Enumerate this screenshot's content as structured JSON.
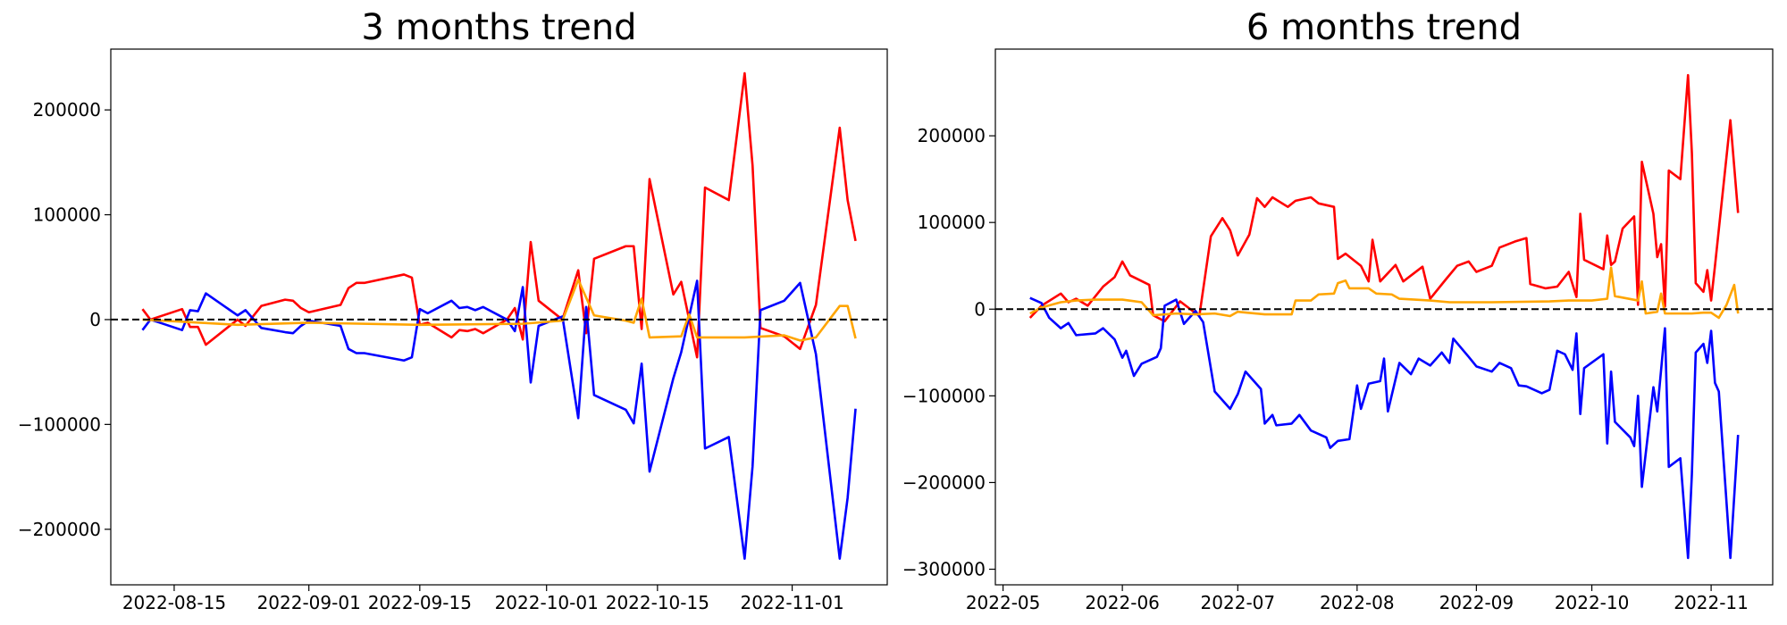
{
  "chart_data": [
    {
      "type": "line",
      "title": "3 months trend",
      "xlim": [
        "2022-08-07",
        "2022-11-13"
      ],
      "xticks": [
        "2022-08-15",
        "2022-09-01",
        "2022-09-15",
        "2022-10-01",
        "2022-10-15",
        "2022-11-01"
      ],
      "ylim": [
        -253000,
        258000
      ],
      "yticks": [
        {
          "value": -200000,
          "label": "−200000"
        },
        {
          "value": -100000,
          "label": "−100000"
        },
        0,
        100000,
        200000
      ],
      "hline": 0,
      "series": [
        {
          "color": "#ff0000",
          "x": [
            "2022-08-11",
            "2022-08-12",
            "2022-08-16",
            "2022-08-17",
            "2022-08-18",
            "2022-08-19",
            "2022-08-23",
            "2022-08-24",
            "2022-08-26",
            "2022-08-29",
            "2022-08-30",
            "2022-08-31",
            "2022-09-01",
            "2022-09-05",
            "2022-09-06",
            "2022-09-07",
            "2022-09-08",
            "2022-09-13",
            "2022-09-14",
            "2022-09-15",
            "2022-09-16",
            "2022-09-19",
            "2022-09-20",
            "2022-09-21",
            "2022-09-22",
            "2022-09-23",
            "2022-09-26",
            "2022-09-27",
            "2022-09-28",
            "2022-09-29",
            "2022-09-30",
            "2022-10-03",
            "2022-10-05",
            "2022-10-06",
            "2022-10-07",
            "2022-10-11",
            "2022-10-12",
            "2022-10-13",
            "2022-10-14",
            "2022-10-17",
            "2022-10-18",
            "2022-10-20",
            "2022-10-21",
            "2022-10-24",
            "2022-10-26",
            "2022-10-27",
            "2022-10-28",
            "2022-10-31",
            "2022-11-02",
            "2022-11-04",
            "2022-11-07",
            "2022-11-08",
            "2022-11-09"
          ],
          "values": [
            10000,
            0,
            10000,
            -7000,
            -7000,
            -24000,
            0,
            -6000,
            13000,
            19000,
            18000,
            11000,
            7000,
            14000,
            30000,
            35000,
            35000,
            43000,
            40000,
            -5000,
            -3000,
            -17000,
            -10000,
            -11000,
            -9000,
            -13000,
            0,
            11000,
            -19000,
            74000,
            18000,
            0,
            47000,
            -13000,
            58000,
            70000,
            70000,
            -9000,
            134000,
            24000,
            36000,
            -36000,
            126000,
            114000,
            235000,
            147000,
            -8000,
            -16000,
            -28000,
            14000,
            183000,
            114000,
            75000
          ]
        },
        {
          "color": "#0000ff",
          "x": [
            "2022-08-11",
            "2022-08-12",
            "2022-08-16",
            "2022-08-17",
            "2022-08-18",
            "2022-08-19",
            "2022-08-23",
            "2022-08-24",
            "2022-08-26",
            "2022-08-29",
            "2022-08-30",
            "2022-08-31",
            "2022-09-01",
            "2022-09-05",
            "2022-09-06",
            "2022-09-07",
            "2022-09-08",
            "2022-09-13",
            "2022-09-14",
            "2022-09-15",
            "2022-09-16",
            "2022-09-19",
            "2022-09-20",
            "2022-09-21",
            "2022-09-22",
            "2022-09-23",
            "2022-09-26",
            "2022-09-27",
            "2022-09-28",
            "2022-09-29",
            "2022-09-30",
            "2022-10-03",
            "2022-10-05",
            "2022-10-06",
            "2022-10-07",
            "2022-10-11",
            "2022-10-12",
            "2022-10-13",
            "2022-10-14",
            "2022-10-17",
            "2022-10-18",
            "2022-10-20",
            "2022-10-21",
            "2022-10-24",
            "2022-10-26",
            "2022-10-27",
            "2022-10-28",
            "2022-10-31",
            "2022-11-02",
            "2022-11-04",
            "2022-11-07",
            "2022-11-08",
            "2022-11-09"
          ],
          "values": [
            -10000,
            0,
            -10000,
            9000,
            8000,
            25000,
            4000,
            9000,
            -8000,
            -12000,
            -13000,
            -6000,
            -1000,
            -6000,
            -28000,
            -32000,
            -32000,
            -39000,
            -36000,
            10000,
            6000,
            18000,
            11000,
            12000,
            9000,
            12000,
            0,
            -11000,
            31000,
            -60000,
            -6000,
            3000,
            -94000,
            12000,
            -72000,
            -86000,
            -99000,
            -42000,
            -145000,
            -56000,
            -31000,
            37000,
            -123000,
            -112000,
            -228000,
            -140000,
            9000,
            18000,
            35000,
            -33000,
            -228000,
            -170000,
            -85000
          ]
        },
        {
          "color": "#ffa500",
          "x": [
            "2022-08-11",
            "2022-08-16",
            "2022-08-23",
            "2022-09-01",
            "2022-09-15",
            "2022-09-28",
            "2022-10-03",
            "2022-10-05",
            "2022-10-07",
            "2022-10-11",
            "2022-10-12",
            "2022-10-13",
            "2022-10-14",
            "2022-10-18",
            "2022-10-19",
            "2022-10-20",
            "2022-10-26",
            "2022-10-31",
            "2022-11-02",
            "2022-11-04",
            "2022-11-07",
            "2022-11-08",
            "2022-11-09"
          ],
          "values": [
            0,
            -2000,
            -5000,
            -3000,
            -5000,
            -4000,
            -1000,
            38000,
            4000,
            -1000,
            -3000,
            20000,
            -17000,
            -16000,
            5000,
            -17000,
            -17000,
            -15000,
            -20000,
            -17000,
            13000,
            13000,
            -18000
          ]
        }
      ]
    },
    {
      "type": "line",
      "title": "6 months trend",
      "xlim": [
        "2022-04-29",
        "2022-11-17"
      ],
      "xticks": [
        {
          "value": "2022-05-01",
          "label": "2022-05"
        },
        {
          "value": "2022-06-01",
          "label": "2022-06"
        },
        {
          "value": "2022-07-01",
          "label": "2022-07"
        },
        {
          "value": "2022-08-01",
          "label": "2022-08"
        },
        {
          "value": "2022-09-01",
          "label": "2022-09"
        },
        {
          "value": "2022-10-01",
          "label": "2022-10"
        },
        {
          "value": "2022-11-01",
          "label": "2022-11"
        }
      ],
      "ylim": [
        -318000,
        300000
      ],
      "yticks": [
        {
          "value": -300000,
          "label": "−300000"
        },
        {
          "value": -200000,
          "label": "−200000"
        },
        {
          "value": -100000,
          "label": "−100000"
        },
        0,
        100000,
        200000
      ],
      "hline": 0,
      "series": [
        {
          "color": "#ff0000",
          "x": [
            "2022-05-08",
            "2022-05-11",
            "2022-05-16",
            "2022-05-18",
            "2022-05-20",
            "2022-05-23",
            "2022-05-27",
            "2022-05-30",
            "2022-06-01",
            "2022-06-03",
            "2022-06-08",
            "2022-06-09",
            "2022-06-12",
            "2022-06-16",
            "2022-06-21",
            "2022-06-24",
            "2022-06-27",
            "2022-06-29",
            "2022-07-01",
            "2022-07-04",
            "2022-07-06",
            "2022-07-08",
            "2022-07-10",
            "2022-07-14",
            "2022-07-16",
            "2022-07-20",
            "2022-07-22",
            "2022-07-26",
            "2022-07-27",
            "2022-07-29",
            "2022-08-02",
            "2022-08-04",
            "2022-08-05",
            "2022-08-07",
            "2022-08-11",
            "2022-08-13",
            "2022-08-18",
            "2022-08-20",
            "2022-08-24",
            "2022-08-27",
            "2022-08-30",
            "2022-09-01",
            "2022-09-05",
            "2022-09-07",
            "2022-09-11",
            "2022-09-14",
            "2022-09-15",
            "2022-09-19",
            "2022-09-22",
            "2022-09-25",
            "2022-09-27",
            "2022-09-28",
            "2022-09-29",
            "2022-10-04",
            "2022-10-05",
            "2022-10-06",
            "2022-10-07",
            "2022-10-09",
            "2022-10-12",
            "2022-10-13",
            "2022-10-14",
            "2022-10-17",
            "2022-10-18",
            "2022-10-19",
            "2022-10-20",
            "2022-10-21",
            "2022-10-24",
            "2022-10-26",
            "2022-10-27",
            "2022-10-28",
            "2022-10-30",
            "2022-10-31",
            "2022-11-01",
            "2022-11-02",
            "2022-11-06",
            "2022-11-08"
          ],
          "values": [
            -10000,
            4000,
            18000,
            8000,
            12000,
            4000,
            26000,
            37000,
            55000,
            39000,
            28000,
            -7000,
            -14000,
            9000,
            -8000,
            84000,
            105000,
            91000,
            62000,
            86000,
            128000,
            118000,
            129000,
            118000,
            125000,
            129000,
            122000,
            118000,
            58000,
            64000,
            50000,
            32000,
            80000,
            32000,
            51000,
            32000,
            49000,
            12000,
            34000,
            50000,
            55000,
            43000,
            50000,
            71000,
            78000,
            82000,
            29000,
            24000,
            26000,
            43000,
            14000,
            110000,
            57000,
            46000,
            85000,
            51000,
            55000,
            93000,
            107000,
            5000,
            170000,
            110000,
            60000,
            75000,
            3000,
            160000,
            150000,
            270000,
            180000,
            30000,
            20000,
            45000,
            10000,
            50000,
            218000,
            111000
          ]
        },
        {
          "color": "#0000ff",
          "x": [
            "2022-05-08",
            "2022-05-11",
            "2022-05-13",
            "2022-05-16",
            "2022-05-18",
            "2022-05-20",
            "2022-05-25",
            "2022-05-27",
            "2022-05-30",
            "2022-06-01",
            "2022-06-02",
            "2022-06-04",
            "2022-06-06",
            "2022-06-10",
            "2022-06-11",
            "2022-06-12",
            "2022-06-15",
            "2022-06-17",
            "2022-06-20",
            "2022-06-22",
            "2022-06-25",
            "2022-06-29",
            "2022-07-01",
            "2022-07-03",
            "2022-07-07",
            "2022-07-08",
            "2022-07-10",
            "2022-07-11",
            "2022-07-15",
            "2022-07-17",
            "2022-07-20",
            "2022-07-24",
            "2022-07-25",
            "2022-07-27",
            "2022-07-30",
            "2022-08-01",
            "2022-08-02",
            "2022-08-04",
            "2022-08-07",
            "2022-08-08",
            "2022-08-09",
            "2022-08-12",
            "2022-08-15",
            "2022-08-17",
            "2022-08-20",
            "2022-08-23",
            "2022-08-25",
            "2022-08-26",
            "2022-08-30",
            "2022-09-01",
            "2022-09-05",
            "2022-09-07",
            "2022-09-10",
            "2022-09-12",
            "2022-09-14",
            "2022-09-18",
            "2022-09-20",
            "2022-09-22",
            "2022-09-24",
            "2022-09-26",
            "2022-09-27",
            "2022-09-28",
            "2022-09-29",
            "2022-10-04",
            "2022-10-05",
            "2022-10-06",
            "2022-10-07",
            "2022-10-11",
            "2022-10-12",
            "2022-10-13",
            "2022-10-14",
            "2022-10-17",
            "2022-10-18",
            "2022-10-20",
            "2022-10-21",
            "2022-10-24",
            "2022-10-26",
            "2022-10-27",
            "2022-10-28",
            "2022-10-30",
            "2022-10-31",
            "2022-11-01",
            "2022-11-02",
            "2022-11-03",
            "2022-11-06",
            "2022-11-08"
          ],
          "values": [
            13000,
            7000,
            -10000,
            -22000,
            -16000,
            -30000,
            -28000,
            -22000,
            -35000,
            -56000,
            -48000,
            -77000,
            -63000,
            -55000,
            -45000,
            4000,
            11000,
            -17000,
            -2000,
            -15000,
            -95000,
            -115000,
            -98000,
            -72000,
            -92000,
            -132000,
            -122000,
            -134000,
            -132000,
            -122000,
            -140000,
            -148000,
            -160000,
            -152000,
            -150000,
            -88000,
            -115000,
            -86000,
            -83000,
            -57000,
            -118000,
            -62000,
            -75000,
            -57000,
            -65000,
            -50000,
            -62000,
            -34000,
            -55000,
            -66000,
            -72000,
            -62000,
            -68000,
            -88000,
            -89000,
            -97000,
            -93000,
            -48000,
            -52000,
            -70000,
            -28000,
            -121000,
            -68000,
            -52000,
            -155000,
            -72000,
            -130000,
            -148000,
            -158000,
            -100000,
            -205000,
            -90000,
            -118000,
            -22000,
            -182000,
            -172000,
            -287000,
            -190000,
            -50000,
            -40000,
            -62000,
            -25000,
            -85000,
            -95000,
            -287000,
            -145000
          ]
        },
        {
          "color": "#ffa500",
          "x": [
            "2022-05-08",
            "2022-05-11",
            "2022-05-16",
            "2022-05-20",
            "2022-05-25",
            "2022-06-01",
            "2022-06-06",
            "2022-06-09",
            "2022-06-15",
            "2022-06-20",
            "2022-06-25",
            "2022-06-29",
            "2022-07-01",
            "2022-07-08",
            "2022-07-15",
            "2022-07-16",
            "2022-07-20",
            "2022-07-22",
            "2022-07-26",
            "2022-07-27",
            "2022-07-29",
            "2022-07-30",
            "2022-08-04",
            "2022-08-06",
            "2022-08-10",
            "2022-08-12",
            "2022-08-20",
            "2022-08-25",
            "2022-09-05",
            "2022-09-20",
            "2022-09-25",
            "2022-10-01",
            "2022-10-05",
            "2022-10-06",
            "2022-10-07",
            "2022-10-13",
            "2022-10-14",
            "2022-10-15",
            "2022-10-18",
            "2022-10-19",
            "2022-10-20",
            "2022-10-27",
            "2022-10-30",
            "2022-11-01",
            "2022-11-03",
            "2022-11-05",
            "2022-11-07",
            "2022-11-08"
          ],
          "values": [
            -5000,
            2000,
            8000,
            10000,
            11000,
            11000,
            8000,
            -7000,
            -5000,
            -6000,
            -5000,
            -8000,
            -3000,
            -6000,
            -6000,
            10000,
            10000,
            17000,
            18000,
            30000,
            33000,
            24000,
            24000,
            18000,
            17000,
            12000,
            10000,
            8000,
            8000,
            9000,
            10000,
            10000,
            12000,
            48000,
            15000,
            10000,
            32000,
            -5000,
            -3000,
            18000,
            -5000,
            -5000,
            -4000,
            -4000,
            -10000,
            5000,
            28000,
            -5000
          ]
        }
      ]
    }
  ]
}
